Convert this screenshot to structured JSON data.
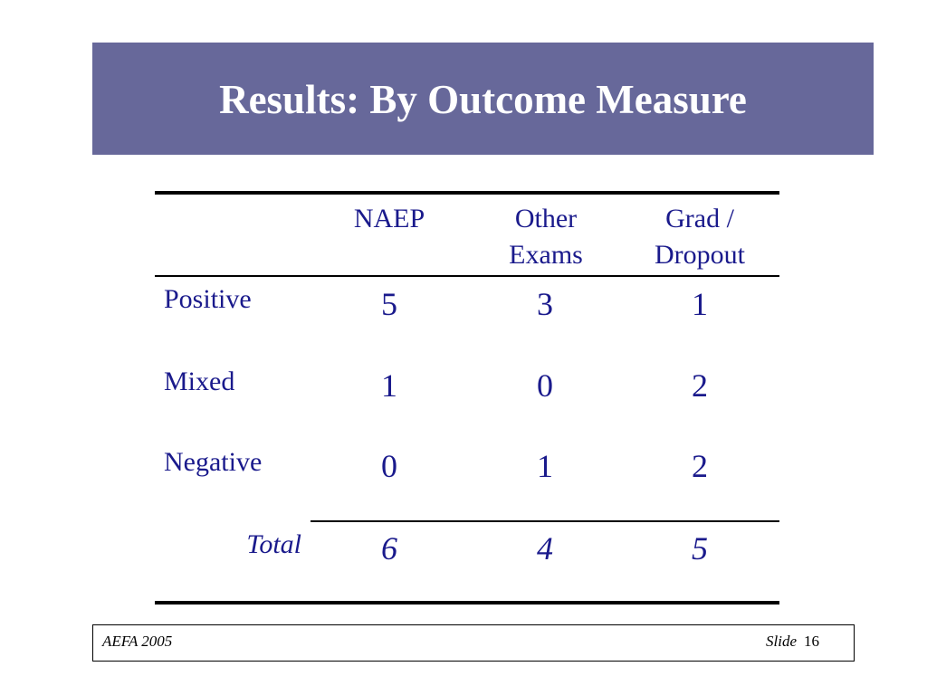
{
  "slide": {
    "title": "Results: By Outcome Measure"
  },
  "table": {
    "columns": [
      {
        "line1": "NAEP",
        "line2": ""
      },
      {
        "line1": "Other",
        "line2": "Exams"
      },
      {
        "line1": "Grad /",
        "line2": "Dropout"
      }
    ],
    "rows": [
      {
        "label": "Positive",
        "values": [
          "5",
          "3",
          "1"
        ]
      },
      {
        "label": "Mixed",
        "values": [
          "1",
          "0",
          "2"
        ]
      },
      {
        "label": "Negative",
        "values": [
          "0",
          "1",
          "2"
        ]
      }
    ],
    "total": {
      "label": "Total",
      "values": [
        "6",
        "4",
        "5"
      ]
    }
  },
  "footer": {
    "left": "AEFA 2005",
    "slide_label": "Slide",
    "slide_number": "16"
  },
  "colors": {
    "title_bar": "#67689a",
    "text": "#1a1a8c"
  }
}
